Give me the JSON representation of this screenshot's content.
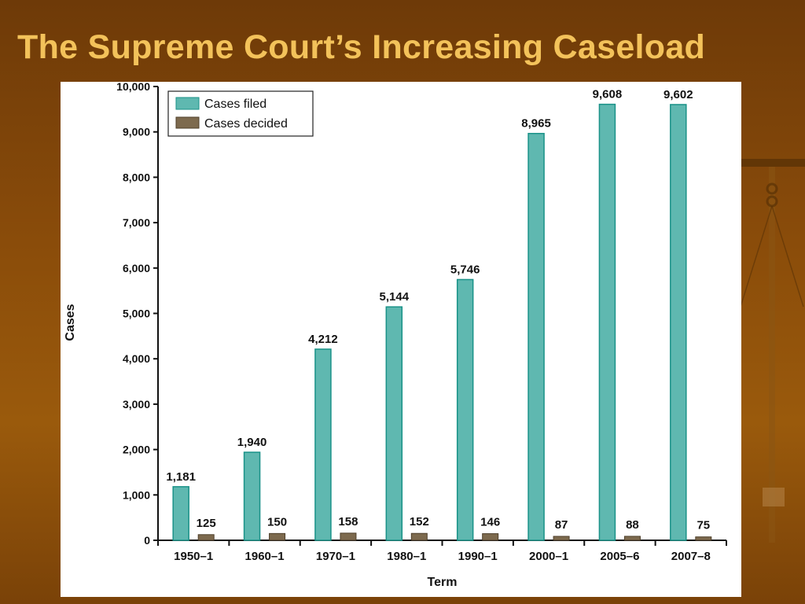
{
  "slide": {
    "title": "The Supreme Court’s Increasing Caseload"
  },
  "colors": {
    "background": "#8a4c0a",
    "title": "#f3c25a",
    "cases_filed": "#5fb8b0",
    "cases_filed_edge": "#1a9288",
    "cases_decided": "#7d6a4e"
  },
  "background_icon": "scales-of-justice-icon",
  "chart_data": {
    "type": "bar",
    "title": "",
    "xlabel": "Term",
    "ylabel": "Cases",
    "ylim": [
      0,
      10000
    ],
    "yticks": [
      0,
      1000,
      2000,
      3000,
      4000,
      5000,
      6000,
      7000,
      8000,
      9000,
      10000
    ],
    "ytick_labels": [
      "0",
      "1,000",
      "2,000",
      "3,000",
      "4,000",
      "5,000",
      "6,000",
      "7,000",
      "8,000",
      "9,000",
      "10,000"
    ],
    "legend_position": "top-left",
    "grid": false,
    "categories": [
      "1950–1",
      "1960–1",
      "1970–1",
      "1980–1",
      "1990–1",
      "2000–1",
      "2005–6",
      "2007–8"
    ],
    "series": [
      {
        "name": "Cases filed",
        "values": [
          1181,
          1940,
          4212,
          5144,
          5746,
          8965,
          9608,
          9602
        ],
        "labels": [
          "1,181",
          "1,940",
          "4,212",
          "5,144",
          "5,746",
          "8,965",
          "9,608",
          "9,602"
        ]
      },
      {
        "name": "Cases decided",
        "values": [
          125,
          150,
          158,
          152,
          146,
          87,
          88,
          75
        ],
        "labels": [
          "125",
          "150",
          "158",
          "152",
          "146",
          "87",
          "88",
          "75"
        ]
      }
    ]
  }
}
